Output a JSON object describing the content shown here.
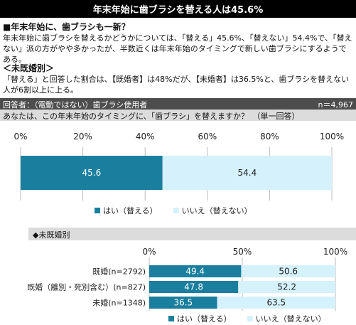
{
  "title": "年末年始に歯ブラシを替える人は45.6%",
  "section1": {
    "heading": "■年末年始に、歯ブラシも一新？",
    "text": "年末年始に歯ブラシを替えるかどうかについては、「替える」45.6%、「替えない」54.4%で、「替えない」派の方がやや多かったが、半数近くは年末年始のタイミングで新しい歯ブラシにするようである。"
  },
  "section2": {
    "heading": "＜未既婚別＞",
    "text": "「替える」と回答した割合は、【既婚者】は48%だが、【未婚者】は36.5%と、歯ブラシを替えない人が6割以上に上る。"
  },
  "respondents": {
    "label": "回答者：（電動ではない）歯ブラシ使用者",
    "n": "n＝4,967"
  },
  "question": "あなたは、この年末年始のタイミングに、「歯ブラシ」を替えますか？　（単一回答）",
  "colors": {
    "yes": "#1a7f9e",
    "no": "#d5f1fb"
  },
  "sub_heading": "◆未既婚別",
  "chart_data": [
    {
      "type": "bar",
      "orientation": "horizontal",
      "stacked": true,
      "xlim": [
        0,
        100
      ],
      "ticks": [
        "0%",
        "20%",
        "40%",
        "60%",
        "80%",
        "100%"
      ],
      "categories": [
        ""
      ],
      "series": [
        {
          "name": "はい（替える）",
          "values": [
            45.6
          ],
          "labels": [
            "45.6"
          ]
        },
        {
          "name": "いいえ（替えない）",
          "values": [
            54.4
          ],
          "labels": [
            "54.4"
          ]
        }
      ],
      "legend": "bottom"
    },
    {
      "type": "bar",
      "orientation": "horizontal",
      "stacked": true,
      "xlim": [
        0,
        100
      ],
      "ticks": [
        "0%",
        "50%",
        "100%"
      ],
      "categories": [
        "既婚(n=2792)",
        "既婚（離別・死別含む）(n=827)",
        "未婚(n=1348)"
      ],
      "series": [
        {
          "name": "はい（替える）",
          "values": [
            49.4,
            47.8,
            36.5
          ],
          "labels": [
            "49.4",
            "47.8",
            "36.5"
          ]
        },
        {
          "name": "いいえ（替えない）",
          "values": [
            50.6,
            52.2,
            63.5
          ],
          "labels": [
            "50.6",
            "52.2",
            "63.5"
          ]
        }
      ],
      "legend": "bottom"
    }
  ]
}
